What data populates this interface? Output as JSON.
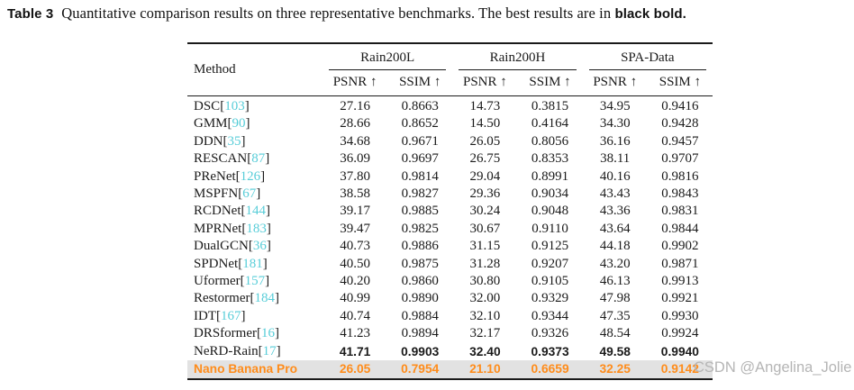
{
  "caption": {
    "label": "Table 3",
    "body": "Quantitative comparison results on three representative benchmarks. The best results are in",
    "suffix": "black bold."
  },
  "table": {
    "method_header": "Method",
    "groups": [
      {
        "label": "Rain200L"
      },
      {
        "label": "Rain200H"
      },
      {
        "label": "SPA-Data"
      }
    ],
    "subheaders": [
      "PSNR ↑",
      "SSIM ↑",
      "PSNR ↑",
      "SSIM ↑",
      "PSNR ↑",
      "SSIM ↑"
    ],
    "rows": [
      {
        "method": "DSC",
        "cite": "103",
        "values": [
          "27.16",
          "0.8663",
          "14.73",
          "0.3815",
          "34.95",
          "0.9416"
        ]
      },
      {
        "method": "GMM",
        "cite": "90",
        "values": [
          "28.66",
          "0.8652",
          "14.50",
          "0.4164",
          "34.30",
          "0.9428"
        ]
      },
      {
        "method": "DDN",
        "cite": "35",
        "values": [
          "34.68",
          "0.9671",
          "26.05",
          "0.8056",
          "36.16",
          "0.9457"
        ]
      },
      {
        "method": "RESCAN",
        "cite": "87",
        "values": [
          "36.09",
          "0.9697",
          "26.75",
          "0.8353",
          "38.11",
          "0.9707"
        ]
      },
      {
        "method": "PReNet",
        "cite": "126",
        "values": [
          "37.80",
          "0.9814",
          "29.04",
          "0.8991",
          "40.16",
          "0.9816"
        ]
      },
      {
        "method": "MSPFN",
        "cite": "67",
        "values": [
          "38.58",
          "0.9827",
          "29.36",
          "0.9034",
          "43.43",
          "0.9843"
        ]
      },
      {
        "method": "RCDNet",
        "cite": "144",
        "values": [
          "39.17",
          "0.9885",
          "30.24",
          "0.9048",
          "43.36",
          "0.9831"
        ]
      },
      {
        "method": "MPRNet",
        "cite": "183",
        "values": [
          "39.47",
          "0.9825",
          "30.67",
          "0.9110",
          "43.64",
          "0.9844"
        ]
      },
      {
        "method": "DualGCN",
        "cite": "36",
        "values": [
          "40.73",
          "0.9886",
          "31.15",
          "0.9125",
          "44.18",
          "0.9902"
        ]
      },
      {
        "method": "SPDNet",
        "cite": "181",
        "values": [
          "40.50",
          "0.9875",
          "31.28",
          "0.9207",
          "43.20",
          "0.9871"
        ]
      },
      {
        "method": "Uformer",
        "cite": "157",
        "values": [
          "40.20",
          "0.9860",
          "30.80",
          "0.9105",
          "46.13",
          "0.9913"
        ]
      },
      {
        "method": "Restormer",
        "cite": "184",
        "values": [
          "40.99",
          "0.9890",
          "32.00",
          "0.9329",
          "47.98",
          "0.9921"
        ]
      },
      {
        "method": "IDT",
        "cite": "167",
        "values": [
          "40.74",
          "0.9884",
          "32.10",
          "0.9344",
          "47.35",
          "0.9930"
        ]
      },
      {
        "method": "DRSformer",
        "cite": "16",
        "values": [
          "41.23",
          "0.9894",
          "32.17",
          "0.9326",
          "48.54",
          "0.9924"
        ]
      },
      {
        "method": "NeRD-Rain",
        "cite": "17",
        "values": [
          "41.71",
          "0.9903",
          "32.40",
          "0.9373",
          "49.58",
          "0.9940"
        ],
        "best": true
      },
      {
        "method": "Nano Banana Pro",
        "cite": null,
        "values": [
          "26.05",
          "0.7954",
          "21.10",
          "0.6659",
          "32.25",
          "0.9142"
        ],
        "highlight": true
      }
    ]
  },
  "watermark": "CSDN @Angelina_Jolie",
  "colors": {
    "citation_cyan": "#57cdd8",
    "highlight_orange": "#ff8c1a",
    "highlight_row_bg": "#e2e2e2",
    "watermark_gray": "#b5b5b5",
    "rule_black": "#1a1a1a"
  }
}
